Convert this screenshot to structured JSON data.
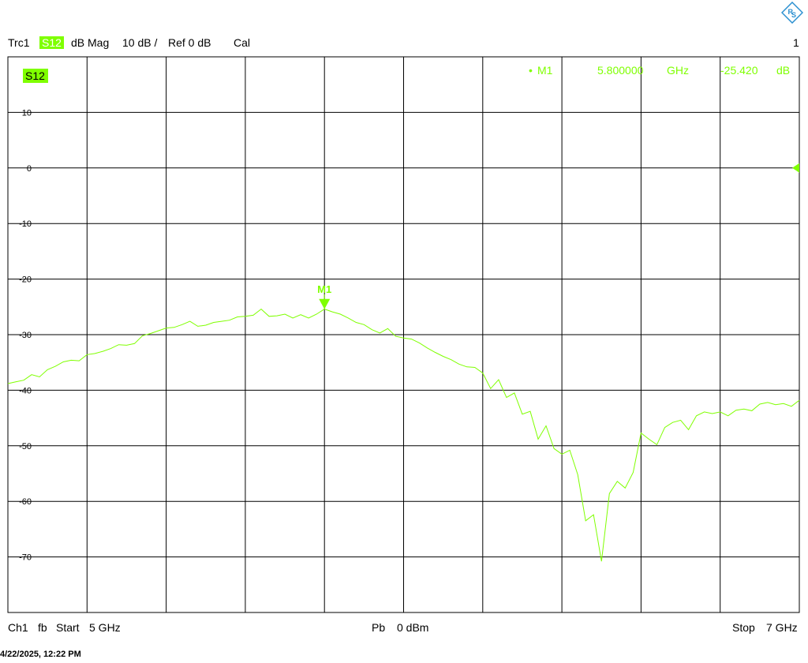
{
  "header": {
    "trace": "Trc1",
    "param": "S12",
    "format": "dB Mag",
    "scale": "10 dB /",
    "ref": "Ref 0 dB",
    "cal": "Cal",
    "channel_index": "1"
  },
  "diagram_tag": "S12",
  "marker": {
    "name": "M1",
    "bullet": "•",
    "freq": "5.800000",
    "freq_unit": "GHz",
    "value": "-25.420",
    "value_unit": "dB"
  },
  "footer": {
    "channel": "Ch1",
    "sweep": "fb",
    "start_label": "Start",
    "start": "5 GHz",
    "power_label": "Pb",
    "power": "0 dBm",
    "stop_label": "Stop",
    "stop": "7 GHz"
  },
  "timestamp": "4/22/2025, 12:22 PM",
  "colors": {
    "trace": "#7fff00",
    "grid": "#000000",
    "background": "#ffffff",
    "logo": "#2a8fd0"
  },
  "icons": {
    "logo": "rohde-schwarz-logo",
    "ref_marker": "reference-level-triangle-icon",
    "marker_arrow": "marker-triangle-icon"
  },
  "chart_data": {
    "type": "line",
    "title": "",
    "xlabel": "",
    "ylabel": "",
    "x_unit": "GHz",
    "y_unit": "dB",
    "xlim": [
      5,
      7
    ],
    "ylim": [
      -80,
      20
    ],
    "grid": true,
    "y_ticks": [
      10,
      0,
      -10,
      -20,
      -30,
      -40,
      -50,
      -60,
      -70
    ],
    "y_tick_labels": [
      "10",
      "0",
      "-10",
      "-20",
      "-30",
      "-40",
      "-50",
      "-60",
      "-70"
    ],
    "ref_level": 0,
    "series": [
      {
        "name": "S12",
        "x": [
          5.0,
          5.02,
          5.04,
          5.06,
          5.08,
          5.1,
          5.12,
          5.14,
          5.16,
          5.18,
          5.2,
          5.22,
          5.24,
          5.26,
          5.28,
          5.3,
          5.32,
          5.34,
          5.36,
          5.38,
          5.4,
          5.42,
          5.44,
          5.46,
          5.48,
          5.5,
          5.52,
          5.54,
          5.56,
          5.58,
          5.6,
          5.62,
          5.64,
          5.66,
          5.68,
          5.7,
          5.72,
          5.74,
          5.76,
          5.78,
          5.8,
          5.82,
          5.84,
          5.86,
          5.88,
          5.9,
          5.92,
          5.94,
          5.96,
          5.98,
          6.0,
          6.02,
          6.04,
          6.06,
          6.08,
          6.1,
          6.12,
          6.14,
          6.16,
          6.18,
          6.2,
          6.22,
          6.24,
          6.26,
          6.28,
          6.3,
          6.32,
          6.34,
          6.36,
          6.38,
          6.4,
          6.42,
          6.44,
          6.46,
          6.48,
          6.5,
          6.52,
          6.54,
          6.56,
          6.58,
          6.6,
          6.62,
          6.64,
          6.66,
          6.68,
          6.7,
          6.72,
          6.74,
          6.76,
          6.78,
          6.8,
          6.82,
          6.84,
          6.86,
          6.88,
          6.9,
          6.92,
          6.94,
          6.96,
          6.98,
          7.0
        ],
        "y": [
          -38.8,
          -38.5,
          -38.2,
          -37.2,
          -37.6,
          -36.3,
          -35.7,
          -34.9,
          -34.6,
          -34.7,
          -33.6,
          -33.4,
          -33.0,
          -32.5,
          -31.8,
          -31.9,
          -31.6,
          -30.2,
          -29.8,
          -29.3,
          -28.8,
          -28.7,
          -28.2,
          -27.6,
          -28.5,
          -28.3,
          -27.8,
          -27.6,
          -27.4,
          -26.8,
          -26.7,
          -26.5,
          -25.4,
          -26.7,
          -26.6,
          -26.3,
          -27.0,
          -26.4,
          -27.0,
          -26.3,
          -25.4,
          -25.9,
          -26.3,
          -27.0,
          -27.8,
          -28.2,
          -29.1,
          -29.7,
          -28.9,
          -30.3,
          -30.6,
          -30.8,
          -31.5,
          -32.4,
          -33.2,
          -33.9,
          -34.5,
          -35.3,
          -35.8,
          -35.9,
          -36.9,
          -39.7,
          -38.1,
          -41.3,
          -40.5,
          -44.3,
          -43.8,
          -48.8,
          -46.4,
          -50.5,
          -51.5,
          -50.8,
          -55.2,
          -63.5,
          -62.4,
          -70.8,
          -58.6,
          -56.4,
          -57.6,
          -54.8,
          -47.7,
          -48.8,
          -49.8,
          -46.7,
          -45.8,
          -45.4,
          -47.1,
          -44.6,
          -43.9,
          -44.2,
          -43.9,
          -44.6,
          -43.6,
          -43.4,
          -43.7,
          -42.5,
          -42.2,
          -42.6,
          -42.4,
          -42.9,
          -41.8
        ]
      }
    ],
    "markers": [
      {
        "name": "M1",
        "x": 5.8,
        "y": -25.42
      }
    ]
  }
}
